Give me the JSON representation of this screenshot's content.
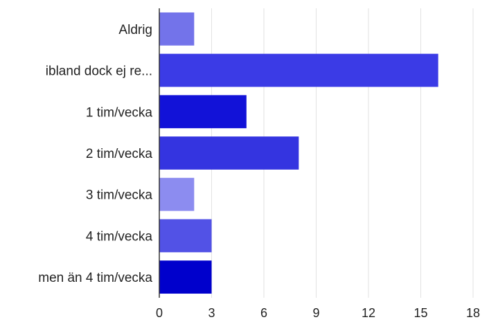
{
  "chart_data": {
    "type": "bar",
    "orientation": "horizontal",
    "categories": [
      "Aldrig",
      "ibland dock ej re...",
      "1 tim/vecka",
      "2 tim/vecka",
      "3 tim/vecka",
      "4 tim/vecka",
      "men än 4 tim/vecka"
    ],
    "values": [
      2,
      16,
      5,
      8,
      2,
      3,
      3
    ],
    "colors": [
      "#7373ea",
      "#3b3be6",
      "#1212d8",
      "#3434e0",
      "#8c8cf0",
      "#5252e6",
      "#0000cc"
    ],
    "xlim": [
      0,
      18
    ],
    "xticks": [
      "0",
      "3",
      "6",
      "9",
      "12",
      "15",
      "18"
    ],
    "grid": true,
    "title": "",
    "xlabel": "",
    "ylabel": ""
  }
}
